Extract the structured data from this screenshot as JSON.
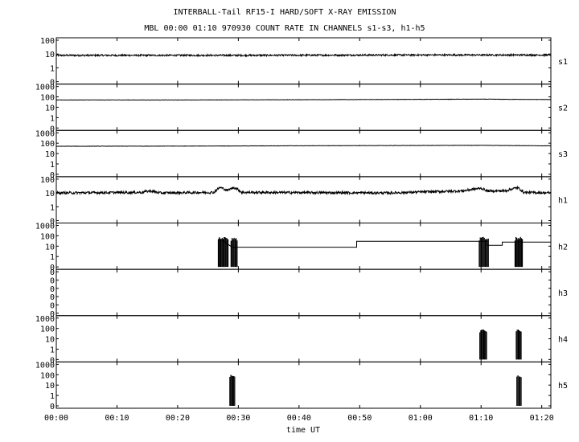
{
  "title": "INTERBALL-Tail RF15-I HARD/SOFT X-RAY EMISSION",
  "subtitle": "MBL 00:00 01:10 970930  COUNT RATE IN CHANNELS s1-s3, h1-h5",
  "colors": {
    "background": "#ffffff",
    "ink": "#000000"
  },
  "chart_data": {
    "type": "line",
    "title": "INTERBALL-Tail RF15-I HARD/SOFT X-RAY EMISSION",
    "subtitle": "MBL 00:00 01:10 970930  COUNT RATE IN CHANNELS s1-s3, h1-h5",
    "xlabel": "time UT",
    "x_unit": "minutes",
    "xlim": [
      0,
      81.5
    ],
    "x_tick_labels": [
      "00:00",
      "00:10",
      "00:20",
      "00:30",
      "00:40",
      "00:50",
      "01:00",
      "01:10",
      "01:20"
    ],
    "y_scale": "log",
    "grid": false,
    "panels": [
      {
        "name": "s1",
        "y_tick_labels": [
          "100",
          "10",
          "1",
          "0"
        ],
        "series": [
          {
            "name": "s1",
            "noise": 0.06,
            "points": [
              [
                0,
                8
              ],
              [
                30,
                8
              ],
              [
                60,
                8.5
              ],
              [
                81.5,
                8.5
              ]
            ]
          }
        ]
      },
      {
        "name": "s2",
        "y_tick_labels": [
          "1000",
          "100",
          "10",
          "1",
          "0"
        ],
        "series": [
          {
            "name": "s2",
            "noise": 0.015,
            "points": [
              [
                0,
                50
              ],
              [
                20,
                50
              ],
              [
                50,
                55
              ],
              [
                70,
                60
              ],
              [
                81.5,
                55
              ]
            ]
          }
        ]
      },
      {
        "name": "s3",
        "y_tick_labels": [
          "1000",
          "100",
          "10",
          "1",
          "0"
        ],
        "series": [
          {
            "name": "s3",
            "noise": 0.015,
            "points": [
              [
                0,
                50
              ],
              [
                20,
                52
              ],
              [
                50,
                58
              ],
              [
                70,
                62
              ],
              [
                81.5,
                55
              ]
            ]
          }
        ]
      },
      {
        "name": "h1",
        "y_tick_labels": [
          "100",
          "10",
          "1",
          "0"
        ],
        "series": [
          {
            "name": "h1",
            "noise": 0.09,
            "points": [
              [
                0,
                10
              ],
              [
                14,
                11
              ],
              [
                15.5,
                14
              ],
              [
                17,
                10
              ],
              [
                26,
                11
              ],
              [
                27,
                25
              ],
              [
                28.2,
                15
              ],
              [
                29.3,
                25
              ],
              [
                30.5,
                11
              ],
              [
                55,
                10
              ],
              [
                67,
                14
              ],
              [
                70,
                22
              ],
              [
                71,
                14
              ],
              [
                74,
                14
              ],
              [
                76,
                24
              ],
              [
                77,
                11
              ],
              [
                81.5,
                10
              ]
            ]
          }
        ]
      },
      {
        "name": "h2",
        "y_tick_labels": [
          "1000",
          "100",
          "10",
          "1",
          "0"
        ],
        "series": [
          {
            "name": "h2",
            "noise": 0,
            "points": [
              [
                27,
                0
              ],
              [
                27,
                50
              ],
              [
                29,
                8
              ],
              [
                49.5,
                8
              ],
              [
                49.5,
                30
              ],
              [
                71,
                30
              ],
              [
                71,
                12
              ],
              [
                73.5,
                12
              ],
              [
                73.5,
                25
              ],
              [
                81.5,
                25
              ]
            ]
          }
        ],
        "bursts": [
          {
            "x0": 26.7,
            "x1": 28.3,
            "peak": 60
          },
          {
            "x0": 28.8,
            "x1": 29.8,
            "peak": 60
          },
          {
            "x0": 69.7,
            "x1": 71.2,
            "peak": 60
          },
          {
            "x0": 75.6,
            "x1": 76.8,
            "peak": 60
          }
        ]
      },
      {
        "name": "h3",
        "y_tick_labels": [
          "0",
          "0",
          "0",
          "0",
          "0",
          "0"
        ],
        "series": []
      },
      {
        "name": "h4",
        "y_tick_labels": [
          "1000",
          "100",
          "10",
          "1",
          "0"
        ],
        "series": [],
        "bursts": [
          {
            "x0": 69.8,
            "x1": 70.9,
            "peak": 70
          },
          {
            "x0": 75.8,
            "x1": 76.6,
            "peak": 60
          }
        ]
      },
      {
        "name": "h5",
        "y_tick_labels": [
          "1000",
          "100",
          "10",
          "1",
          "0"
        ],
        "series": [],
        "bursts": [
          {
            "x0": 28.6,
            "x1": 29.4,
            "peak": 80
          },
          {
            "x0": 75.9,
            "x1": 76.6,
            "peak": 80
          }
        ]
      }
    ]
  }
}
